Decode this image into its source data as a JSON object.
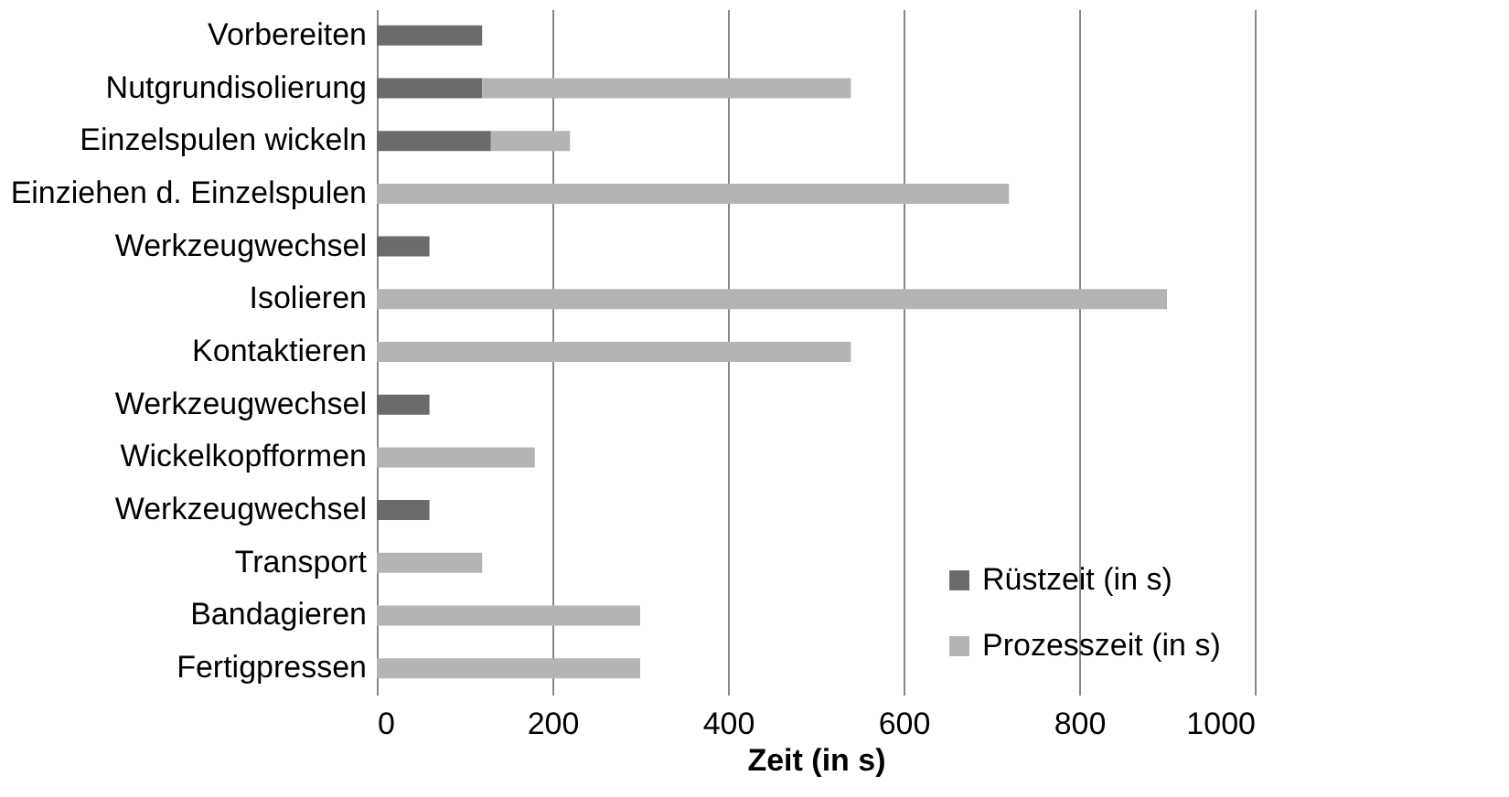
{
  "chart_data": {
    "type": "bar",
    "orientation": "horizontal",
    "stacked": true,
    "categories": [
      "Vorbereiten",
      "Nutgrundisolierung",
      "Einzelspulen wickeln",
      "Einziehen d. Einzelspulen",
      "Werkzeugwechsel",
      "Isolieren",
      "Kontaktieren",
      "Werkzeugwechsel",
      "Wickelkopfformen",
      "Werkzeugwechsel",
      "Transport",
      "Bandagieren",
      "Fertigpressen"
    ],
    "series": [
      {
        "name": "Rüstzeit (in s)",
        "color": "#6b6b6b",
        "values": [
          120,
          120,
          130,
          null,
          60,
          null,
          null,
          60,
          null,
          60,
          null,
          null,
          null
        ]
      },
      {
        "name": "Prozesszeit (in s)",
        "color": "#b4b4b4",
        "values": [
          null,
          420,
          90,
          720,
          null,
          900,
          540,
          null,
          180,
          null,
          120,
          300,
          300
        ]
      }
    ],
    "xlabel": "Zeit (in s)",
    "xlim": [
      0,
      1000
    ],
    "xticks": [
      0,
      200,
      400,
      600,
      800,
      1000
    ],
    "grid": "x",
    "legend": "bottom right"
  }
}
